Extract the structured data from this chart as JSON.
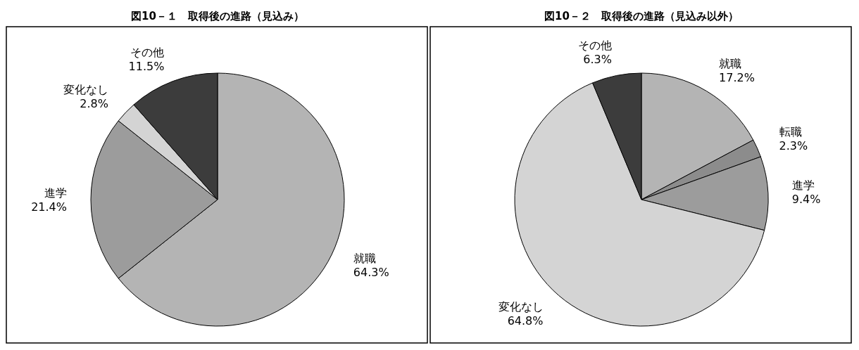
{
  "chart_data": [
    {
      "type": "pie",
      "title": "図10－１　取得後の進路（見込み）",
      "categories": [
        "就職",
        "進学",
        "変化なし",
        "その他"
      ],
      "values": [
        64.3,
        21.4,
        2.8,
        11.5
      ],
      "value_labels": [
        "64.3%",
        "21.4%",
        "2.8%",
        "11.5%"
      ],
      "colors": [
        "#b4b4b4",
        "#9c9c9c",
        "#d4d4d4",
        "#3c3c3c"
      ]
    },
    {
      "type": "pie",
      "title": "図10－２　取得後の進路（見込み以外）",
      "categories": [
        "就職",
        "転職",
        "進学",
        "変化なし",
        "その他"
      ],
      "values": [
        17.2,
        2.3,
        9.4,
        64.8,
        6.3
      ],
      "value_labels": [
        "17.2%",
        "2.3%",
        "9.4%",
        "64.8%",
        "6.3%"
      ],
      "colors": [
        "#b4b4b4",
        "#8c8c8c",
        "#9c9c9c",
        "#d4d4d4",
        "#3c3c3c"
      ]
    }
  ]
}
